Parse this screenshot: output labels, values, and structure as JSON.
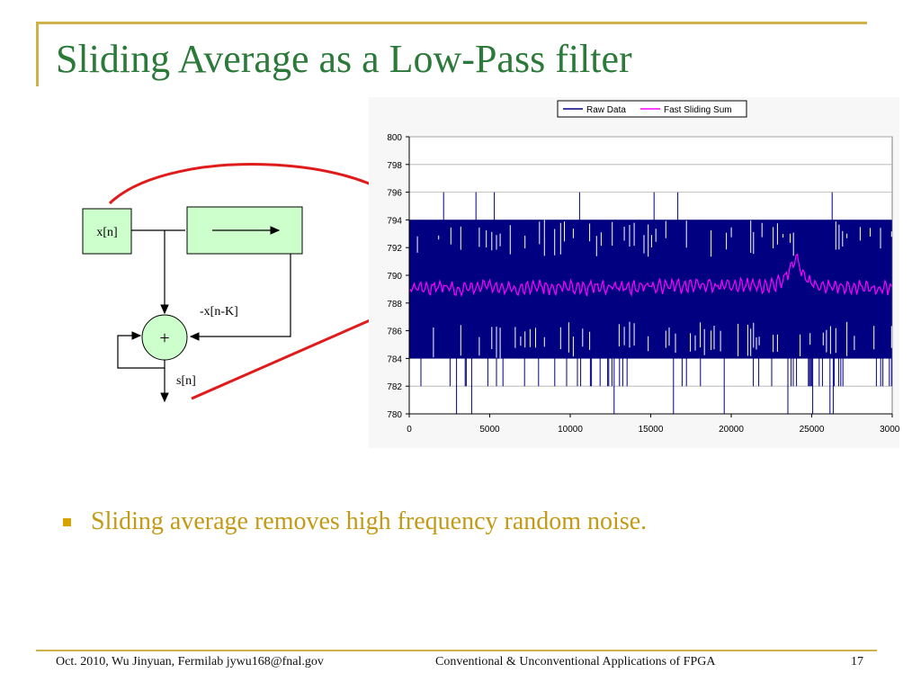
{
  "slide": {
    "title": "Sliding Average as a Low-Pass filter",
    "bullet": "Sliding average removes high frequency random noise.",
    "colors": {
      "accent": "#d1b14a",
      "title": "#2c7a3a",
      "bullet": "#c39a16",
      "arrow": "#e01b1b"
    }
  },
  "diagram": {
    "input_label": "x[n]",
    "feedback_label": "-x[n-K]",
    "sum_symbol": "+",
    "output_label": "s[n]",
    "colors": {
      "block_fill": "#ccffcc"
    }
  },
  "chart_data": {
    "type": "line",
    "legend_position": "top",
    "xlim": [
      0,
      30000
    ],
    "ylim": [
      780,
      800
    ],
    "xticks": [
      "0",
      "5000",
      "10000",
      "15000",
      "20000",
      "25000",
      "30000"
    ],
    "yticks": [
      "780",
      "782",
      "784",
      "786",
      "788",
      "790",
      "792",
      "794",
      "796",
      "798",
      "800"
    ],
    "grid": true,
    "series": [
      {
        "name": "Raw Data",
        "color": "#000080",
        "band_low": 784,
        "band_high": 794,
        "outlier_min": 780,
        "outlier_max": 796
      },
      {
        "name": "Fast Sliding Sum",
        "color": "#ff00ff",
        "x": [
          0,
          1000,
          2000,
          3000,
          4000,
          5000,
          6000,
          7000,
          8000,
          9000,
          10000,
          11000,
          12000,
          13000,
          14000,
          15000,
          16000,
          17000,
          18000,
          19000,
          20000,
          21000,
          22000,
          23000,
          23500,
          24000,
          24500,
          25000,
          26000,
          27000,
          28000,
          29000,
          30000
        ],
        "y": [
          789.1,
          789.0,
          789.2,
          789.0,
          789.1,
          789.2,
          789.0,
          789.1,
          789.2,
          789.1,
          789.2,
          789.1,
          789.2,
          789.2,
          789.1,
          789.3,
          789.2,
          789.2,
          789.3,
          789.2,
          789.3,
          789.3,
          789.2,
          789.5,
          790.2,
          791.3,
          789.9,
          789.3,
          789.2,
          789.1,
          789.2,
          789.0,
          789.1
        ]
      }
    ]
  },
  "footer": {
    "left": "Oct. 2010, Wu Jinyuan, Fermilab jywu168@fnal.gov",
    "center": "Conventional & Unconventional Applications of FPGA",
    "page": "17"
  }
}
